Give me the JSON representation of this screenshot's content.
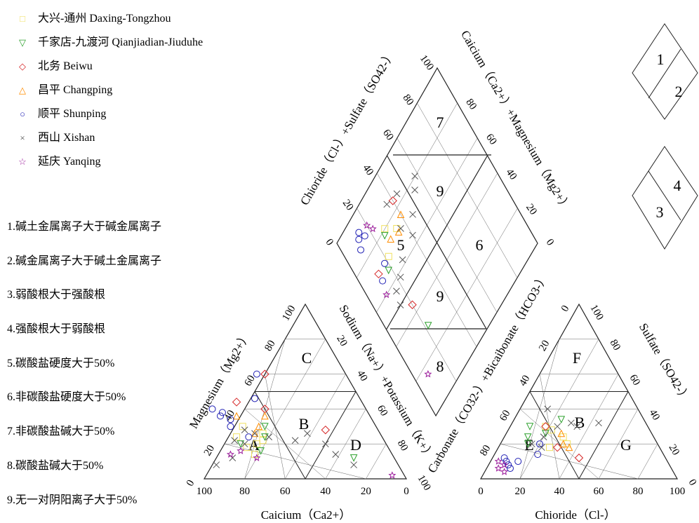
{
  "legend": [
    {
      "name": "大兴-通州 Daxing-Tongzhou",
      "symbol": "square",
      "color": "#f0e060"
    },
    {
      "name": "千家店-九渡河 Qianjiadian-Jiuduhe",
      "symbol": "triangle-down",
      "color": "#2ca02c"
    },
    {
      "name": "北务 Beiwu",
      "symbol": "diamond",
      "color": "#d62728"
    },
    {
      "name": "昌平 Changping",
      "symbol": "triangle-up",
      "color": "#ff8c00"
    },
    {
      "name": "顺平 Shunping",
      "symbol": "circle",
      "color": "#1f1fb4"
    },
    {
      "name": "西山 Xishan",
      "symbol": "cross",
      "color": "#555555"
    },
    {
      "name": "延庆 Yanqing",
      "symbol": "star",
      "color": "#9b1b9b"
    }
  ],
  "notes": [
    "1.碱土金属离子大于碱金属离子",
    "2.碱金属离子大于碱土金属离子",
    "3.弱酸根大于强酸根",
    "4.强酸根大于弱酸根",
    "5.碳酸盐硬度大于50%",
    "6.非碳酸盐硬度大于50%",
    "7.非碳酸盐碱大于50%",
    "8.碳酸盐碱大于50%",
    "9.无一对阴阳离子大于50%"
  ],
  "key_diagram": {
    "numbers": [
      "1",
      "2",
      "3",
      "4"
    ]
  },
  "chart_data": {
    "type": "scatter",
    "subtype": "piper-diagram",
    "cation_triangle": {
      "xlabel": "Caicium（Ca2+）",
      "left_label": "Magnesium（Mg2+）",
      "right_label": "Sodium（Na+）+Potassium（K+）",
      "ticks": [
        "0",
        "20",
        "40",
        "60",
        "80",
        "100"
      ],
      "zone_labels": [
        "A",
        "B",
        "C",
        "D"
      ]
    },
    "anion_triangle": {
      "xlabel": "Chioride（Cl-）",
      "left_label": "Carbonate（CO32-）+Bicaibonate（HCO3-）",
      "right_label": "Sulfate（SO42-）",
      "ticks": [
        "0",
        "20",
        "40",
        "60",
        "80",
        "100"
      ],
      "zone_labels": [
        "E",
        "B",
        "F",
        "G"
      ]
    },
    "diamond": {
      "upper_left_label": "Chioride（Cl-）+Sulfate（SO42-）",
      "upper_right_label": "Caicium（Ca2+）+Magnesium（Mg2+）",
      "ticks": [
        "0",
        "20",
        "40",
        "60",
        "80",
        "100"
      ],
      "zone_labels": [
        "7",
        "9",
        "5",
        "6",
        "9",
        "8"
      ]
    },
    "series": [
      {
        "name": "大兴-通州 Daxing-Tongzhou",
        "color": "#f0e060",
        "symbol": "square",
        "cation": [
          [
            70,
            18
          ],
          [
            64,
            20
          ],
          [
            58,
            26
          ],
          [
            66,
            30
          ],
          [
            60,
            22
          ],
          [
            72,
            24
          ],
          [
            68,
            14
          ]
        ],
        "anion": [
          [
            22,
            28
          ],
          [
            30,
            24
          ],
          [
            18,
            30
          ],
          [
            26,
            18
          ],
          [
            34,
            20
          ]
        ],
        "diamond": [
          [
            80,
            28
          ],
          [
            74,
            34
          ],
          [
            70,
            22
          ]
        ]
      },
      {
        "name": "千家店-九渡河 Qianjiadian-Jiuduhe",
        "color": "#2ca02c",
        "symbol": "triangle-down",
        "cation": [
          [
            58,
            24
          ],
          [
            64,
            16
          ],
          [
            72,
            20
          ],
          [
            20,
            12
          ],
          [
            55,
            30
          ]
        ],
        "anion": [
          [
            12,
            24
          ],
          [
            10,
            30
          ],
          [
            14,
            20
          ],
          [
            20,
            26
          ],
          [
            24,
            34
          ]
        ],
        "diamond": [
          [
            78,
            26
          ],
          [
            66,
            18
          ],
          [
            30,
            22
          ]
        ]
      },
      {
        "name": "北务 Beiwu",
        "color": "#d62728",
        "symbol": "diamond",
        "cation": [
          [
            40,
            60
          ],
          [
            26,
            28
          ],
          [
            50,
            40
          ],
          [
            62,
            44
          ]
        ],
        "anion": [
          [
            18,
            30
          ],
          [
            30,
            18
          ],
          [
            44,
            12
          ]
        ],
        "diamond": [
          [
            70,
            12
          ],
          [
            44,
            20
          ],
          [
            84,
            40
          ]
        ]
      },
      {
        "name": "昌平 Changping",
        "color": "#ff8c00",
        "symbol": "triangle-up",
        "cation": [
          [
            52,
            36
          ],
          [
            62,
            26
          ],
          [
            58,
            30
          ],
          [
            66,
            36
          ]
        ],
        "anion": [
          [
            28,
            26
          ],
          [
            32,
            20
          ],
          [
            36,
            18
          ]
        ],
        "diamond": [
          [
            76,
            40
          ],
          [
            74,
            28
          ],
          [
            72,
            34
          ]
        ]
      },
      {
        "name": "顺平 Shunping",
        "color": "#1f1fb4",
        "symbol": "circle",
        "cation": [
          [
            74,
            36
          ],
          [
            72,
            38
          ],
          [
            70,
            34
          ],
          [
            76,
            40
          ],
          [
            72,
            30
          ],
          [
            44,
            60
          ],
          [
            52,
            46
          ],
          [
            66,
            24
          ]
        ],
        "anion": [
          [
            8,
            10
          ],
          [
            10,
            8
          ],
          [
            6,
            12
          ],
          [
            12,
            6
          ],
          [
            14,
            10
          ],
          [
            20,
            20
          ],
          [
            22,
            14
          ]
        ],
        "diamond": [
          [
            92,
            14
          ],
          [
            90,
            12
          ],
          [
            88,
            16
          ],
          [
            86,
            10
          ],
          [
            70,
            18
          ],
          [
            66,
            12
          ]
        ]
      },
      {
        "name": "西山 Xishan",
        "color": "#555555",
        "symbol": "cross",
        "cation": [
          [
            70,
            20
          ],
          [
            66,
            28
          ],
          [
            74,
            22
          ],
          [
            62,
            26
          ],
          [
            56,
            24
          ],
          [
            36,
            26
          ],
          [
            30,
            20
          ],
          [
            44,
            22
          ],
          [
            28,
            14
          ],
          [
            90,
            8
          ],
          [
            22,
            8
          ],
          [
            80,
            12
          ]
        ],
        "anion": [
          [
            16,
            20
          ],
          [
            20,
            24
          ],
          [
            24,
            30
          ],
          [
            30,
            32
          ],
          [
            34,
            30
          ],
          [
            44,
            32
          ],
          [
            14,
            40
          ],
          [
            22,
            18
          ]
        ],
        "diamond": [
          [
            80,
            58
          ],
          [
            76,
            54
          ],
          [
            70,
            46
          ],
          [
            64,
            40
          ],
          [
            84,
            44
          ],
          [
            72,
            36
          ],
          [
            62,
            28
          ],
          [
            58,
            22
          ],
          [
            50,
            14
          ],
          [
            56,
            16
          ],
          [
            86,
            36
          ]
        ]
      },
      {
        "name": "延庆 Yanqing",
        "color": "#9b1b9b",
        "symbol": "star",
        "cation": [
          [
            6,
            2
          ],
          [
            80,
            14
          ],
          [
            74,
            16
          ],
          [
            68,
            12
          ]
        ],
        "anion": [
          [
            6,
            6
          ],
          [
            10,
            4
          ],
          [
            4,
            10
          ],
          [
            8,
            8
          ]
        ],
        "diamond": [
          [
            90,
            20
          ],
          [
            86,
            22
          ],
          [
            60,
            10
          ],
          [
            16,
            8
          ]
        ]
      }
    ]
  }
}
